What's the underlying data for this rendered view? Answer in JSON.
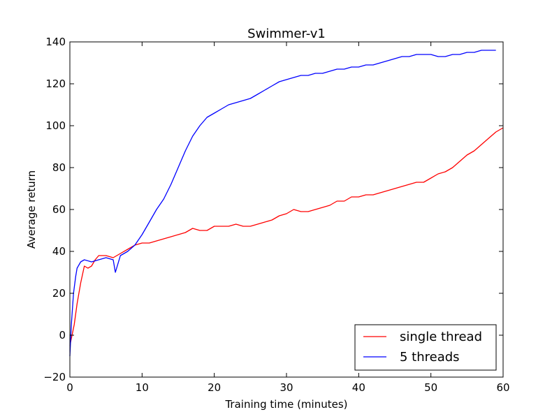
{
  "chart_data": {
    "type": "line",
    "title": "Swimmer-v1",
    "xlabel": "Training time (minutes)",
    "ylabel": "Average return",
    "xlim": [
      0,
      60
    ],
    "ylim": [
      -20,
      140
    ],
    "xticks": [
      0,
      10,
      20,
      30,
      40,
      50,
      60
    ],
    "yticks": [
      -20,
      0,
      20,
      40,
      60,
      80,
      100,
      120,
      140
    ],
    "grid": false,
    "legend_position": "lower-right",
    "series": [
      {
        "name": "single thread",
        "color": "#ff0000",
        "x": [
          0,
          0.3,
          0.6,
          1,
          1.5,
          2,
          2.5,
          3,
          3.5,
          4,
          5,
          6,
          7,
          8,
          9,
          10,
          11,
          12,
          13,
          14,
          15,
          16,
          17,
          18,
          19,
          20,
          21,
          22,
          23,
          24,
          25,
          26,
          27,
          28,
          29,
          30,
          31,
          32,
          33,
          34,
          35,
          36,
          37,
          38,
          39,
          40,
          41,
          42,
          43,
          44,
          45,
          46,
          47,
          48,
          49,
          50,
          51,
          52,
          53,
          54,
          55,
          56,
          57,
          58,
          59,
          60
        ],
        "y": [
          -5,
          0,
          5,
          15,
          25,
          33,
          32,
          33,
          36,
          38,
          38,
          37,
          39,
          41,
          43,
          44,
          44,
          45,
          46,
          47,
          48,
          49,
          51,
          50,
          50,
          52,
          52,
          52,
          53,
          52,
          52,
          53,
          54,
          55,
          57,
          58,
          60,
          59,
          59,
          60,
          61,
          62,
          64,
          64,
          66,
          66,
          67,
          67,
          68,
          69,
          70,
          71,
          72,
          73,
          73,
          75,
          77,
          78,
          80,
          83,
          86,
          88,
          91,
          94,
          97,
          99
        ]
      },
      {
        "name": "5 threads",
        "color": "#0000ff",
        "x": [
          0,
          0.2,
          0.5,
          0.8,
          1,
          1.5,
          2,
          3,
          4,
          5,
          6,
          6.3,
          7,
          8,
          9,
          10,
          11,
          12,
          13,
          14,
          15,
          16,
          17,
          18,
          19,
          20,
          21,
          22,
          23,
          24,
          25,
          26,
          27,
          28,
          29,
          30,
          31,
          32,
          33,
          34,
          35,
          36,
          37,
          38,
          39,
          40,
          41,
          42,
          43,
          44,
          45,
          46,
          47,
          48,
          49,
          50,
          51,
          52,
          53,
          54,
          55,
          56,
          57,
          58,
          59
        ],
        "y": [
          -10,
          5,
          20,
          28,
          32,
          35,
          36,
          35,
          36,
          37,
          36,
          30,
          38,
          40,
          43,
          48,
          54,
          60,
          65,
          72,
          80,
          88,
          95,
          100,
          104,
          106,
          108,
          110,
          111,
          112,
          113,
          115,
          117,
          119,
          121,
          122,
          123,
          124,
          124,
          125,
          125,
          126,
          127,
          127,
          128,
          128,
          129,
          129,
          130,
          131,
          132,
          133,
          133,
          134,
          134,
          134,
          133,
          133,
          134,
          134,
          135,
          135,
          136,
          136,
          136
        ]
      }
    ]
  }
}
